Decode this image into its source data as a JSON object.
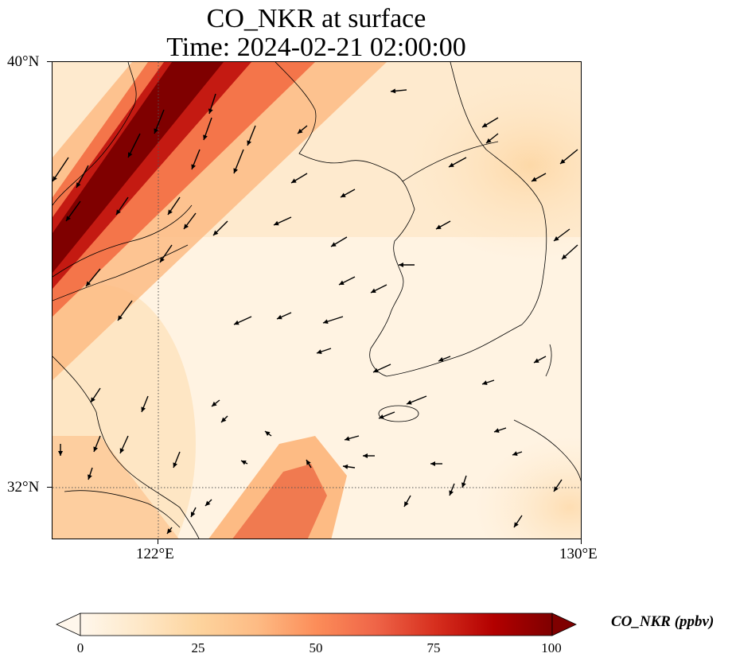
{
  "title": {
    "line1": "CO_NKR at surface",
    "line2": "Time: 2024-02-21 02:00:00"
  },
  "map": {
    "variable": "CO_NKR",
    "level": "surface",
    "units": "ppbv",
    "extent": {
      "lon_min": 119.5,
      "lon_max": 130.0,
      "lat_min": 31.0,
      "lat_max": 40.0
    },
    "lat_ticks": [
      "40°N",
      "32°N"
    ],
    "lon_ticks": [
      "122°E",
      "130°E"
    ],
    "gridlines": {
      "lon": 122,
      "lat": 32,
      "style": "dotted"
    },
    "colormap": "OrRd",
    "high_concentration_band": "NE-SW plume along northwest edge (Bohai / Shandong region), values near or above 100",
    "secondary_plume": "moderate values (~40-60) south-central area near 31-32°N",
    "wind_vectors": "shown as black arrows, generally from north/northeast over sea"
  },
  "colorbar": {
    "label": "CO_NKR (ppbv)",
    "min": 0,
    "max": 100,
    "ticks": [
      "0",
      "25",
      "50",
      "75",
      "100"
    ],
    "extend": "both",
    "colors": [
      "#fff7ec",
      "#fee8c8",
      "#fdd49e",
      "#fdbb84",
      "#fc8d59",
      "#ef6548",
      "#d7301f",
      "#b30000",
      "#7f0000"
    ]
  }
}
